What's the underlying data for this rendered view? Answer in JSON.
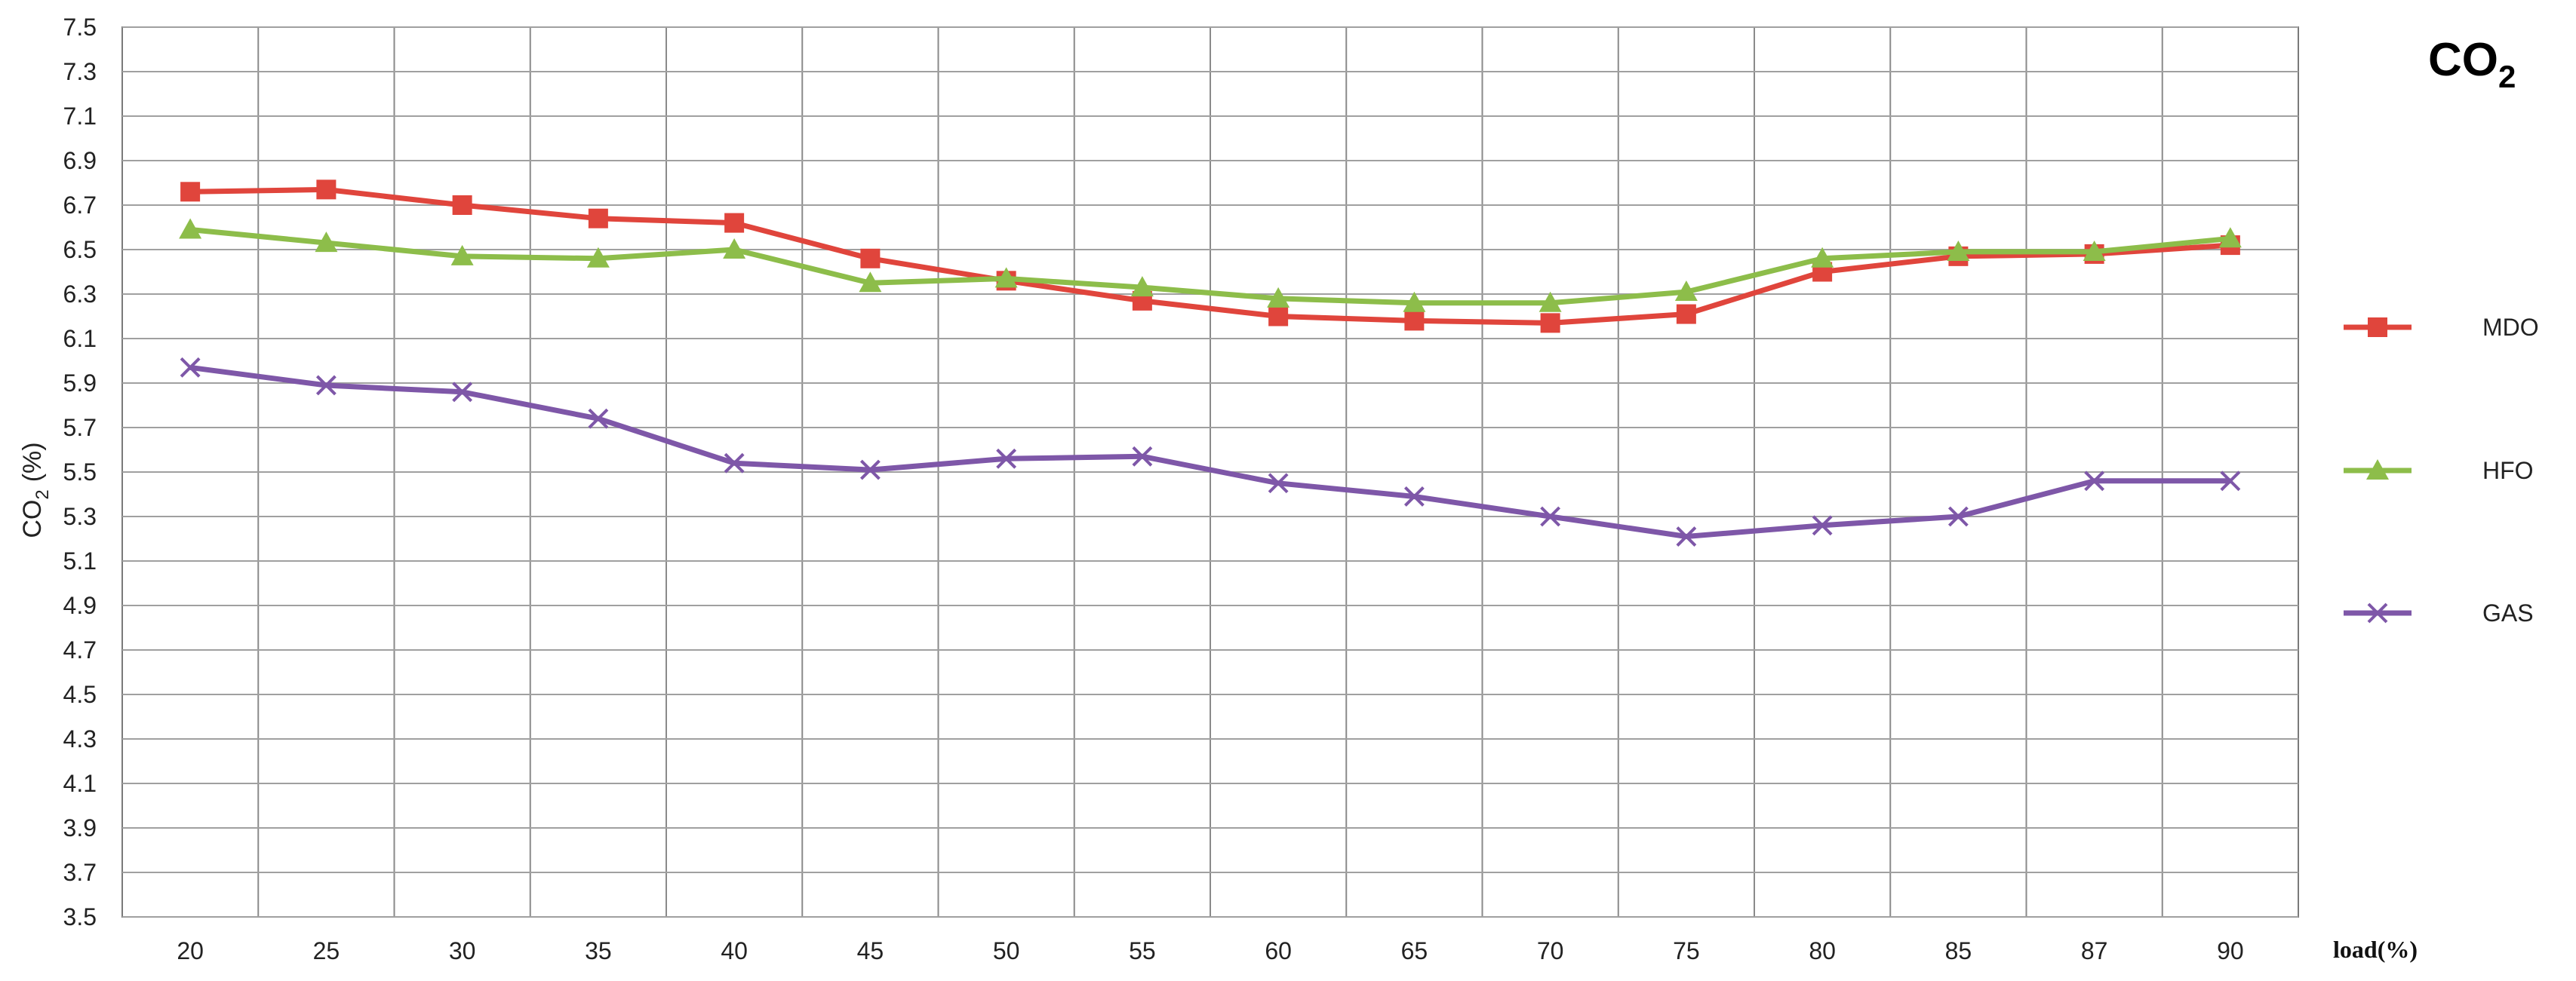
{
  "chart_data": {
    "type": "line",
    "title": "CO2",
    "title_main": "CO",
    "title_sub": "2",
    "ylabel": "CO2 (%)",
    "ylabel_main": "CO",
    "ylabel_sub": "2",
    "ylabel_unit": "(%)",
    "xlabel": "load(%)",
    "categories": [
      "20",
      "25",
      "30",
      "35",
      "40",
      "45",
      "50",
      "55",
      "60",
      "65",
      "70",
      "75",
      "80",
      "85",
      "87",
      "90"
    ],
    "y_ticks": [
      "3.5",
      "3.7",
      "3.9",
      "4.1",
      "4.3",
      "4.5",
      "4.7",
      "4.9",
      "5.1",
      "5.3",
      "5.5",
      "5.7",
      "5.9",
      "6.1",
      "6.3",
      "6.5",
      "6.7",
      "6.9",
      "7.1",
      "7.3",
      "7.5"
    ],
    "ylim": [
      3.5,
      7.5
    ],
    "grid": true,
    "legend_position": "right",
    "series": [
      {
        "name": "MDO",
        "color": "#e0453c",
        "marker": "square",
        "values": [
          6.76,
          6.77,
          6.7,
          6.64,
          6.62,
          6.46,
          6.36,
          6.27,
          6.2,
          6.18,
          6.17,
          6.21,
          6.4,
          6.47,
          6.48,
          6.52
        ]
      },
      {
        "name": "HFO",
        "color": "#8dbd4a",
        "marker": "triangle",
        "values": [
          6.59,
          6.53,
          6.47,
          6.46,
          6.5,
          6.35,
          6.37,
          6.33,
          6.28,
          6.26,
          6.26,
          6.31,
          6.46,
          6.49,
          6.49,
          6.55
        ]
      },
      {
        "name": "GAS",
        "color": "#7e57a8",
        "marker": "x",
        "values": [
          5.97,
          5.89,
          5.86,
          5.74,
          5.54,
          5.51,
          5.56,
          5.57,
          5.45,
          5.39,
          5.3,
          5.21,
          5.26,
          5.3,
          5.46,
          5.46
        ]
      }
    ]
  }
}
